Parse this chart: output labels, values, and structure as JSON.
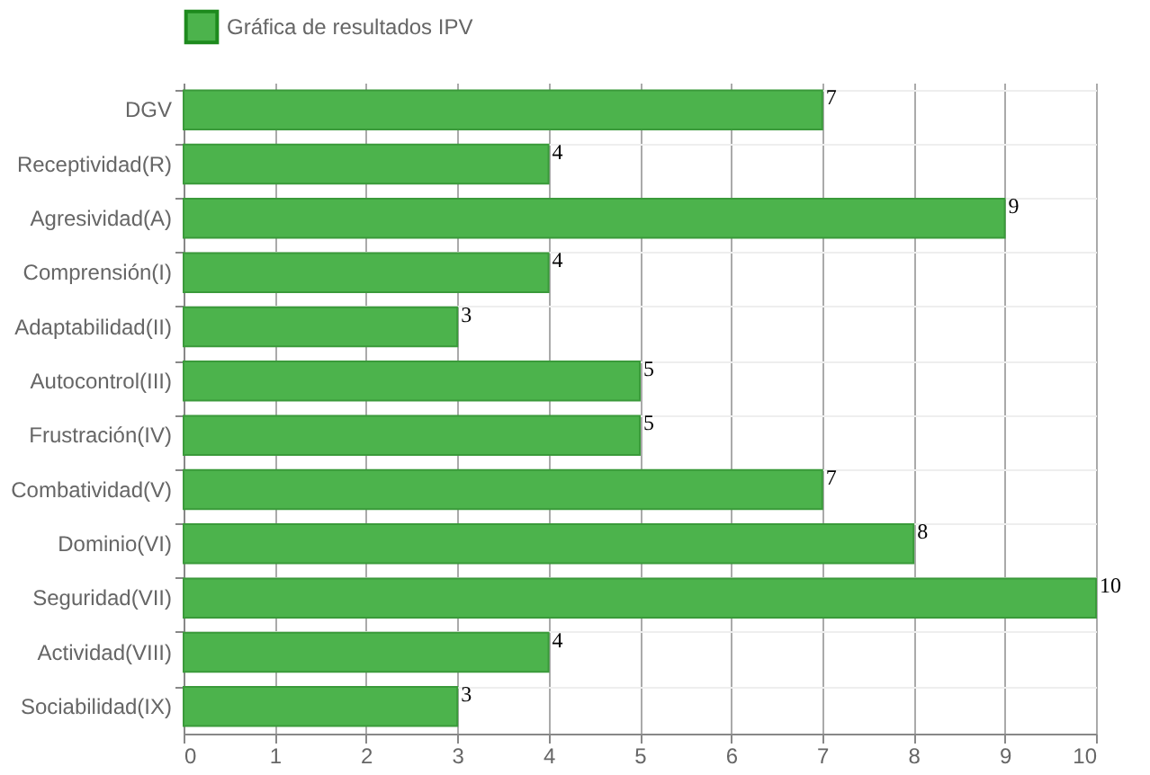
{
  "chart_data": {
    "type": "bar",
    "orientation": "horizontal",
    "categories": [
      "DGV",
      "Receptividad(R)",
      "Agresividad(A)",
      "Comprensión(I)",
      "Adaptabilidad(II)",
      "Autocontrol(III)",
      "Frustración(IV)",
      "Combatividad(V)",
      "Dominio(VI)",
      "Seguridad(VII)",
      "Actividad(VIII)",
      "Sociabilidad(IX)"
    ],
    "series": [
      {
        "name": "Gráfica de resultados IPV",
        "color": "#4cb34c",
        "values": [
          7,
          4,
          9,
          4,
          3,
          5,
          5,
          7,
          8,
          10,
          4,
          3
        ]
      }
    ],
    "xlim": [
      0,
      10
    ],
    "xticks": [
      0,
      1,
      2,
      3,
      4,
      5,
      6,
      7,
      8,
      9,
      10
    ],
    "grid": true,
    "legend": "top",
    "data_labels": true
  }
}
